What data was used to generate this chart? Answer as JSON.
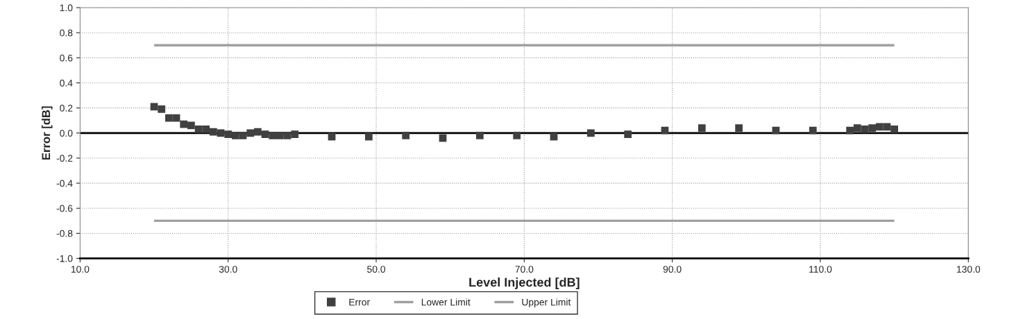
{
  "chart_data": {
    "type": "scatter",
    "xlabel": "Level Injected [dB]",
    "ylabel": "Error [dB]",
    "x": [
      20,
      21,
      22,
      23,
      24,
      25,
      26,
      27,
      28,
      29,
      30,
      31,
      32,
      33,
      34,
      35,
      36,
      37,
      38,
      39,
      44,
      49,
      54,
      59,
      64,
      69,
      74,
      79,
      84,
      89,
      94,
      99,
      104,
      109,
      114,
      115,
      116,
      117,
      118,
      119,
      120
    ],
    "series": [
      {
        "name": "Error",
        "color": "#404040",
        "marker": "square",
        "values": [
          0.21,
          0.19,
          0.12,
          0.12,
          0.07,
          0.06,
          0.03,
          0.03,
          0.01,
          0.0,
          -0.01,
          -0.02,
          -0.02,
          0.0,
          0.01,
          -0.01,
          -0.02,
          -0.02,
          -0.02,
          -0.01,
          -0.03,
          -0.03,
          -0.02,
          -0.04,
          -0.02,
          -0.02,
          -0.03,
          0.0,
          -0.01,
          0.02,
          0.04,
          0.04,
          0.02,
          0.02,
          0.02,
          0.04,
          0.03,
          0.04,
          0.05,
          0.05,
          0.03
        ]
      },
      {
        "name": "Lower Limit",
        "type": "line",
        "color": "#a0a0a0",
        "marker": "none",
        "values": [
          -0.7,
          -0.7,
          -0.7,
          -0.7,
          -0.7,
          -0.7,
          -0.7,
          -0.7,
          -0.7,
          -0.7,
          -0.7,
          -0.7,
          -0.7,
          -0.7,
          -0.7,
          -0.7,
          -0.7,
          -0.7,
          -0.7,
          -0.7,
          -0.7,
          -0.7,
          -0.7,
          -0.7,
          -0.7,
          -0.7,
          -0.7,
          -0.7,
          -0.7,
          -0.7,
          -0.7,
          -0.7,
          -0.7,
          -0.7,
          -0.7,
          -0.7,
          -0.7,
          -0.7,
          -0.7,
          -0.7,
          -0.7
        ]
      },
      {
        "name": "Upper Limit",
        "type": "line",
        "color": "#a0a0a0",
        "marker": "none",
        "values": [
          0.7,
          0.7,
          0.7,
          0.7,
          0.7,
          0.7,
          0.7,
          0.7,
          0.7,
          0.7,
          0.7,
          0.7,
          0.7,
          0.7,
          0.7,
          0.7,
          0.7,
          0.7,
          0.7,
          0.7,
          0.7,
          0.7,
          0.7,
          0.7,
          0.7,
          0.7,
          0.7,
          0.7,
          0.7,
          0.7,
          0.7,
          0.7,
          0.7,
          0.7,
          0.7,
          0.7,
          0.7,
          0.7,
          0.7,
          0.7,
          0.7
        ]
      }
    ],
    "ref_lines": [
      {
        "axis": "y",
        "value": 0,
        "color": "#000000"
      }
    ],
    "xlim": [
      10,
      130
    ],
    "xticks": [
      {
        "value": 10,
        "label": "10.0"
      },
      {
        "value": 30,
        "label": "30.0"
      },
      {
        "value": 50,
        "label": "50.0"
      },
      {
        "value": 70,
        "label": "70.0"
      },
      {
        "value": 90,
        "label": "90.0"
      },
      {
        "value": 110,
        "label": "110.0"
      },
      {
        "value": 130,
        "label": "130.0"
      }
    ],
    "ylim": [
      -1,
      1
    ],
    "yticks": [
      {
        "value": -1,
        "label": "-1.0"
      },
      -0.8,
      -0.6,
      -0.4,
      -0.2,
      {
        "value": 0,
        "label": "0.0"
      },
      0.2,
      0.4,
      0.6,
      0.8,
      {
        "value": 1,
        "label": "1.0"
      }
    ],
    "grid": true,
    "legend": "bottom"
  }
}
